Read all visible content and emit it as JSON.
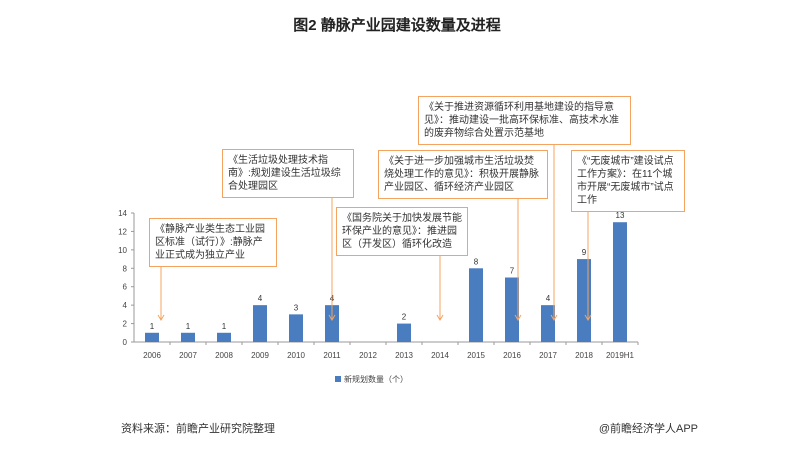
{
  "chart_data": {
    "type": "bar",
    "title": "图2  静脉产业园建设数量及进程",
    "categories": [
      "2006",
      "2007",
      "2008",
      "2009",
      "2010",
      "2011",
      "2012",
      "2013",
      "2014",
      "2015",
      "2016",
      "2017",
      "2018",
      "2019H1"
    ],
    "series": [
      {
        "name": "新规划数量（个）",
        "values": [
          1,
          1,
          1,
          4,
          3,
          4,
          0,
          2,
          0,
          8,
          7,
          4,
          9,
          13
        ]
      }
    ],
    "data_labels": [
      "1",
      "1",
      "1",
      "4",
      "3",
      "4",
      "",
      "2",
      "",
      "8",
      "7",
      "4",
      "9",
      "13"
    ],
    "yticks": [
      0,
      2,
      4,
      6,
      8,
      10,
      12,
      14
    ],
    "ylim": [
      0,
      14
    ],
    "legend_position": "bottom",
    "bar_color": "#4a7dbf",
    "annotations": [
      {
        "id": "a2006",
        "category": "2006",
        "text": "《静脉产业类生态工业园区标准（试行）》:静脉产业正式成为独立产业"
      },
      {
        "id": "a2011",
        "category": "2011",
        "text": "《生活垃圾处理技术指南》:规划建设生活垃圾综合处理园区"
      },
      {
        "id": "a2014",
        "category": "2014",
        "text": "《国务院关于加快发展节能环保产业的意见》：推进园区（开发区）循环化改造"
      },
      {
        "id": "a2016",
        "category": "2016",
        "text": "《关于进一步加强城市生活垃圾焚烧处理工作的意见》：积极开展静脉产业园区、循环经济产业园区"
      },
      {
        "id": "a2017",
        "category": "2017",
        "text": "《关于推进资源循环利用基地建设的指导意见》：推动建设一批高环保标准、高技术水准的废弃物综合处置示范基地"
      },
      {
        "id": "a2018",
        "category": "2018",
        "text": "《“无废城市”建设试点工作方案》：在11个城市开展“无废城市”试点工作"
      }
    ],
    "annotation_color": "#f4a460"
  },
  "footer": {
    "source": "资料来源：前瞻产业研究院整理",
    "credit": "@前瞻经济学人APP"
  }
}
